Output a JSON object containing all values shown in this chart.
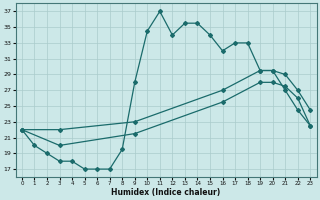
{
  "xlabel": "Humidex (Indice chaleur)",
  "bg_color": "#cce8e8",
  "grid_color": "#aacccc",
  "line_color": "#1a6b6b",
  "xlim": [
    -0.5,
    23.5
  ],
  "ylim": [
    16,
    38
  ],
  "yticks": [
    17,
    19,
    21,
    23,
    25,
    27,
    29,
    31,
    33,
    35,
    37
  ],
  "xticks": [
    0,
    1,
    2,
    3,
    4,
    5,
    6,
    7,
    8,
    9,
    10,
    11,
    12,
    13,
    14,
    15,
    16,
    17,
    18,
    19,
    20,
    21,
    22,
    23
  ],
  "line1_x": [
    0,
    1,
    2,
    3,
    4,
    5,
    6,
    7,
    8,
    9,
    10,
    11,
    12,
    13,
    14,
    15,
    16,
    17,
    18,
    19,
    20,
    21,
    22,
    23
  ],
  "line1_y": [
    22,
    20,
    19,
    18,
    18,
    17,
    17,
    17,
    19.5,
    28,
    34.5,
    37,
    34,
    35.5,
    35.5,
    34,
    32,
    33,
    33,
    29.5,
    29.5,
    27,
    24.5,
    22.5
  ],
  "line2_x": [
    0,
    3,
    9,
    16,
    19,
    20,
    21,
    22,
    23
  ],
  "line2_y": [
    22,
    22,
    23,
    27,
    29.5,
    29.5,
    29,
    27,
    24.5
  ],
  "line3_x": [
    0,
    3,
    9,
    16,
    19,
    20,
    21,
    22,
    23
  ],
  "line3_y": [
    22,
    20,
    21.5,
    25.5,
    28,
    28,
    27.5,
    26,
    22.5
  ]
}
